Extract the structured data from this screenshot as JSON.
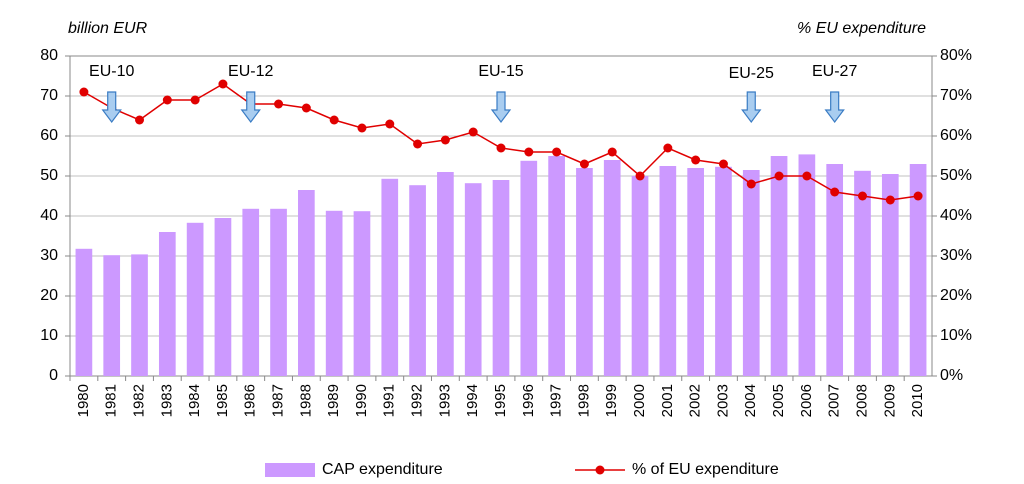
{
  "chart_data": {
    "type": "bar_line",
    "y_label": "billion EUR",
    "y2_label": "% EU expenditure",
    "categories": [
      "1980",
      "1981",
      "1982",
      "1983",
      "1984",
      "1985",
      "1986",
      "1987",
      "1988",
      "1989",
      "1990",
      "1991",
      "1992",
      "1993",
      "1994",
      "1995",
      "1996",
      "1997",
      "1998",
      "1999",
      "2000",
      "2001",
      "2002",
      "2003",
      "2004",
      "2005",
      "2006",
      "2007",
      "2008",
      "2009",
      "2010"
    ],
    "series": [
      {
        "name": "CAP expenditure",
        "type": "bar",
        "color": "#cc99ff",
        "values": [
          31.8,
          30.2,
          30.4,
          36,
          38.3,
          39.5,
          41.8,
          41.8,
          46.5,
          41.3,
          41.2,
          49.3,
          47.7,
          51,
          48.2,
          49,
          53.8,
          55,
          52,
          54,
          50,
          52.5,
          52,
          52.3,
          51.5,
          55,
          55.4,
          53,
          51.3,
          50.5,
          53
        ]
      },
      {
        "name": "% of EU expenditure",
        "type": "line",
        "axis": "y2",
        "color": "#e00000",
        "values": [
          71,
          67,
          64,
          69,
          69,
          73,
          68,
          68,
          67,
          64,
          62,
          63,
          58,
          59,
          61,
          57,
          56,
          56,
          53,
          56,
          50,
          57,
          54,
          53,
          48,
          50,
          50,
          46,
          45,
          44,
          45
        ]
      }
    ],
    "annotations": [
      {
        "label": "EU-10",
        "category": "1981"
      },
      {
        "label": "EU-12",
        "category": "1986"
      },
      {
        "label": "EU-15",
        "category": "1995"
      },
      {
        "label": "EU-25",
        "category": "2004"
      },
      {
        "label": "EU-27",
        "category": "2007"
      }
    ],
    "ylim": [
      0,
      80
    ],
    "yticks": [
      0,
      10,
      20,
      30,
      40,
      50,
      60,
      70,
      80
    ],
    "y2lim": [
      0,
      80
    ],
    "y2ticks": [
      {
        "value": 0,
        "label": "0%"
      },
      {
        "value": 10,
        "label": "10%"
      },
      {
        "value": 20,
        "label": "20%"
      },
      {
        "value": 30,
        "label": "30%"
      },
      {
        "value": 40,
        "label": "40%"
      },
      {
        "value": 50,
        "label": "50%"
      },
      {
        "value": 60,
        "label": "60%"
      },
      {
        "value": 70,
        "label": "70%"
      },
      {
        "value": 80,
        "label": "80%"
      }
    ],
    "grid": true
  }
}
